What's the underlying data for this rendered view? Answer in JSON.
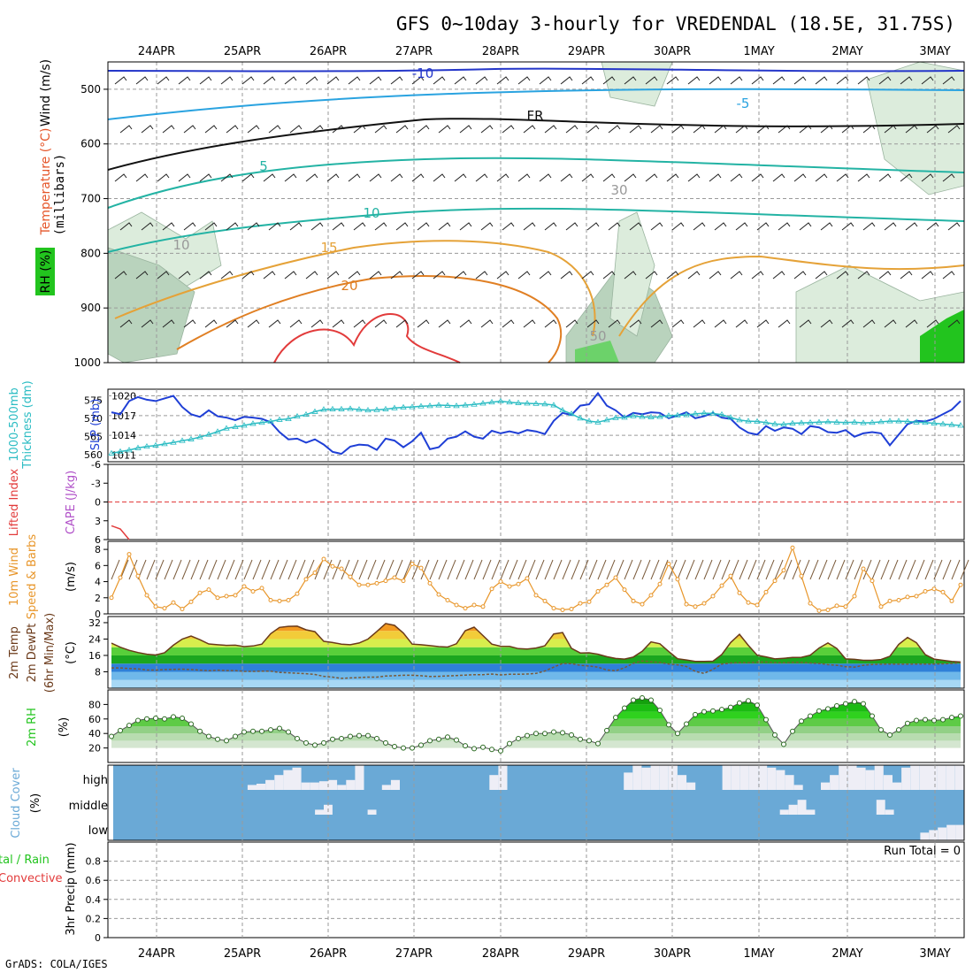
{
  "header": {
    "title": "GFS 0~10day 3-hourly for VREDENDAL (18.5E, 31.75S)",
    "footer": "GrADS: COLA/IGES"
  },
  "dates": [
    "24APR",
    "25APR",
    "26APR",
    "27APR",
    "28APR",
    "29APR",
    "30APR",
    "1MAY",
    "2MAY",
    "3MAY"
  ],
  "colors": {
    "temp_line": "#1f3fd6",
    "thickness": "#2bbcc3",
    "wind_speed": "#e8962a",
    "cloud": "#6aa9d6",
    "rh_green": "#22c41e",
    "lifted": "#e23b3b"
  },
  "chart_data": [
    {
      "panel": "upper_air",
      "type": "heatmap",
      "ylabel_parts": [
        "Wind (m/s)",
        "Temperature (°C)",
        "RH (%)",
        "(millibars)"
      ],
      "y_ticks": [
        "500",
        "600",
        "700",
        "800",
        "900",
        "1000"
      ],
      "ylim": [
        450,
        1000
      ],
      "contour_labels": [
        "-10",
        "-5",
        "FR",
        "5",
        "10",
        "15",
        "20",
        "10",
        "30",
        "50"
      ]
    },
    {
      "panel": "slp_thickness",
      "type": "line",
      "ylabel_left": "Thickness (dm)",
      "ylabel_left2": "1000-500mb",
      "ylabel_right": "SLP (mb)",
      "left_ticks": [
        "575",
        "570",
        "565",
        "560"
      ],
      "right_ticks": [
        "1020",
        "1017",
        "1014",
        "1011"
      ],
      "series": [
        {
          "name": "SLP (mb)",
          "axis": "right",
          "ylim": [
            1010,
            1021
          ],
          "values": [
            1017.5,
            1017.2,
            1019.2,
            1019.8,
            1019.4,
            1019.2,
            1019.6,
            1020,
            1018.3,
            1017.2,
            1016.8,
            1017.8,
            1016.9,
            1016.7,
            1016.3,
            1016.8,
            1016.7,
            1016.5,
            1016,
            1014.5,
            1013.4,
            1013.5,
            1012.9,
            1013.4,
            1012.6,
            1011.5,
            1011.2,
            1012.3,
            1012.6,
            1012.5,
            1011.8,
            1013.5,
            1013.2,
            1012.2,
            1013.1,
            1014.4,
            1011.9,
            1012.2,
            1013.5,
            1013.8,
            1014.6,
            1013.8,
            1013.5,
            1014.7,
            1014.3,
            1014.6,
            1014.3,
            1014.8,
            1014.6,
            1014.2,
            1016.2,
            1017.4,
            1017.1,
            1018.5,
            1018.7,
            1020.4,
            1018.5,
            1017.8,
            1016.7,
            1017.4,
            1017.2,
            1017.5,
            1017.4,
            1016.6,
            1017,
            1017.5,
            1016.6,
            1016.9,
            1017.4,
            1016.7,
            1016.5,
            1015.2,
            1014.4,
            1014.1,
            1015.4,
            1014.7,
            1015.2,
            1015,
            1014.2,
            1015.4,
            1015.2,
            1014.5,
            1014.4,
            1014.8,
            1013.8,
            1014.3,
            1014.5,
            1014.3,
            1012.5,
            1014.1,
            1015.7,
            1016.2,
            1016.1,
            1016.5,
            1017.2,
            1017.9,
            1019.2
          ]
        },
        {
          "name": "1000-500mb Thickness (dm)",
          "axis": "left",
          "ylim": [
            558,
            578
          ],
          "values": [
            560.3,
            560.8,
            561.2,
            561.8,
            562.2,
            562.5,
            562.9,
            563.3,
            563.8,
            564.2,
            564.8,
            565.5,
            566.3,
            567.2,
            567.6,
            568,
            568.5,
            568.8,
            569.1,
            569.6,
            569.8,
            570.5,
            571,
            571.8,
            572.4,
            572.5,
            572.5,
            572.6,
            572.4,
            572.2,
            572.3,
            572.5,
            572.8,
            573,
            573.1,
            573.3,
            573.4,
            573.6,
            573.5,
            573.4,
            573.6,
            573.8,
            574.1,
            574.4,
            574.7,
            574.4,
            574.2,
            574.1,
            574,
            573.9,
            573.6,
            572.2,
            571.2,
            570,
            569.2,
            568.9,
            569.5,
            570.1,
            570.2,
            570.6,
            570.4,
            570.3,
            570.4,
            570.7,
            570.8,
            570.9,
            571.2,
            571.4,
            571.3,
            571,
            570.2,
            569.5,
            569.2,
            569.1,
            568.8,
            568.4,
            568.3,
            568.6,
            568.7,
            568.8,
            568.9,
            569,
            568.9,
            568.8,
            568.9,
            568.7,
            568.8,
            569,
            569.2,
            569.2,
            569.1,
            568.9,
            568.8,
            568.6,
            568.4,
            568.2,
            568
          ]
        }
      ]
    },
    {
      "panel": "lifted_cape",
      "type": "line",
      "ylabel": "Lifted Index",
      "ylabel2": "CAPE (J/kg)",
      "y_ticks": [
        "-6",
        "-3",
        "0",
        "3",
        "6"
      ],
      "ylim": [
        -6,
        6
      ],
      "series": [
        {
          "name": "Lifted Index",
          "values": [
            3.8,
            4.3,
            6
          ]
        }
      ]
    },
    {
      "panel": "wind10m",
      "type": "line",
      "ylabel": "10m Wind",
      "ylabel2": "Speed & Barbs",
      "units": "(m/s)",
      "y_ticks": [
        "0",
        "2",
        "4",
        "6",
        "8"
      ],
      "ylim": [
        0,
        9
      ],
      "series": [
        {
          "name": "10m Wind Speed",
          "values": [
            2,
            4.5,
            7.4,
            4.7,
            2.3,
            0.9,
            0.7,
            1.4,
            0.6,
            1.5,
            2.6,
            3,
            2,
            2.2,
            2.3,
            3.4,
            2.8,
            3.2,
            1.7,
            1.6,
            1.7,
            2.5,
            4.3,
            5.1,
            6.8,
            5.9,
            5.6,
            4.6,
            3.6,
            3.6,
            3.8,
            4.1,
            4.5,
            4.1,
            6.2,
            5.7,
            3.8,
            2.4,
            1.7,
            1.1,
            0.7,
            1.1,
            0.9,
            3.1,
            4,
            3.4,
            3.7,
            4.4,
            2.3,
            1.6,
            0.7,
            0.5,
            0.6,
            1.3,
            1.5,
            2.8,
            3.6,
            4.5,
            3,
            1.6,
            1.2,
            2.3,
            3.7,
            6.2,
            4.3,
            1.2,
            0.9,
            1.3,
            2.2,
            3.5,
            4.7,
            2.6,
            1.4,
            1.1,
            2.7,
            4.1,
            5.4,
            8.2,
            4.7,
            1.3,
            0.4,
            0.5,
            1,
            0.9,
            2.2,
            5.6,
            4.1,
            0.9,
            1.6,
            1.7,
            2.1,
            2.2,
            2.8,
            3.1,
            2.7,
            1.6,
            3.6
          ]
        }
      ]
    },
    {
      "panel": "temp2m",
      "type": "area",
      "ylabel": "2m Temp",
      "ylabel2": "2m DewPt",
      "ylabel3": "(6hr Min/Max)",
      "units": "(°C)",
      "y_ticks": [
        "8",
        "16",
        "24",
        "32"
      ],
      "ylim": [
        0,
        35
      ],
      "series": [
        {
          "name": "2m Temp",
          "values": [
            22,
            20,
            18.5,
            17.4,
            16.6,
            16.2,
            17.3,
            21,
            24,
            25.5,
            23.7,
            21.6,
            21.2,
            20.9,
            21,
            20.3,
            20.6,
            21.5,
            26.6,
            29.7,
            30.2,
            30.3,
            28.5,
            27.6,
            22.9,
            22.3,
            21.5,
            21.2,
            22.1,
            24,
            27.7,
            31.6,
            30.7,
            26.9,
            21.5,
            21.2,
            20.8,
            20.3,
            20.1,
            21.7,
            28.1,
            29.8,
            25.7,
            21.5,
            20.5,
            20.4,
            19.3,
            19.1,
            19.6,
            20.7,
            26.5,
            27.2,
            19.5,
            17.2,
            17.3,
            16.6,
            15.4,
            14.5,
            14.2,
            15.2,
            18,
            22.6,
            21.7,
            17.9,
            14.4,
            13.8,
            13.1,
            13.1,
            13.2,
            16.4,
            22.3,
            26.3,
            20.9,
            16.1,
            15.3,
            14.3,
            14.6,
            15,
            15.1,
            16.1,
            19.6,
            22.1,
            19.4,
            14.3,
            14.1,
            13.6,
            13.6,
            14,
            15.6,
            21.4,
            24.8,
            22.2,
            16.4,
            14.2,
            13.6,
            13.1,
            12.8
          ]
        },
        {
          "name": "2m DewPt",
          "values": [
            9.9,
            9.9,
            9.6,
            9.4,
            8.9,
            8.8,
            9.1,
            9.2,
            9.3,
            9.1,
            8.8,
            8.5,
            8.8,
            8.6,
            8.6,
            8.2,
            8.2,
            8.3,
            8.3,
            7.7,
            7.5,
            7.3,
            7.1,
            6.7,
            5.8,
            5.4,
            4.8,
            5,
            5.2,
            5.4,
            5.4,
            5.9,
            6.1,
            6.3,
            6.3,
            6.1,
            5.7,
            5.8,
            6,
            6.2,
            6.4,
            6.6,
            6.6,
            6.9,
            6.5,
            6.8,
            6.8,
            6.9,
            7.2,
            8.4,
            10.3,
            12.1,
            12,
            11.2,
            10.8,
            10.3,
            8.9,
            8.5,
            10,
            12.2,
            13.3,
            12.9,
            12.6,
            11.8,
            11.4,
            10.6,
            8.2,
            7.2,
            9.2,
            11.8,
            12.3,
            12.5,
            12.5,
            12.7,
            12.8,
            12.5,
            12.4,
            12.6,
            12.6,
            12.3,
            12.1,
            11.5,
            11.2,
            10.5,
            10.3,
            11.2,
            11.6,
            11.7,
            11.8,
            11.7,
            11.7,
            11.8,
            11.8,
            11.8,
            11.9,
            12.1,
            12.4
          ]
        }
      ]
    },
    {
      "panel": "rh2m",
      "type": "area",
      "ylabel": "2m RH",
      "units": "(%)",
      "y_ticks": [
        "20",
        "40",
        "60",
        "80"
      ],
      "ylim": [
        0,
        100
      ],
      "series": [
        {
          "name": "2m RH",
          "values": [
            36,
            44,
            51,
            58,
            60,
            61,
            60,
            63,
            61,
            53,
            43,
            36,
            32,
            30,
            36,
            42,
            43,
            43,
            45,
            47,
            42,
            33,
            27,
            24,
            27,
            32,
            33,
            36,
            37,
            37,
            33,
            27,
            22,
            20,
            20,
            24,
            30,
            32,
            35,
            31,
            23,
            19,
            21,
            18,
            16,
            26,
            33,
            37,
            40,
            40,
            42,
            41,
            38,
            32,
            30,
            26,
            44,
            62,
            75,
            86,
            89,
            86,
            72,
            52,
            40,
            53,
            66,
            70,
            71,
            73,
            76,
            82,
            85,
            79,
            59,
            38,
            25,
            43,
            57,
            64,
            71,
            74,
            78,
            81,
            84,
            81,
            64,
            45,
            38,
            45,
            54,
            58,
            59,
            58,
            59,
            62,
            64
          ]
        }
      ]
    },
    {
      "panel": "cloud_cover",
      "type": "area",
      "ylabel": "Cloud Cover",
      "units": "(%)",
      "y_ticks": [
        "high",
        "middle",
        "low"
      ],
      "series": [
        {
          "name": "high",
          "values": [
            0,
            0,
            0,
            0,
            0,
            0,
            0,
            0,
            0,
            0,
            0,
            0,
            0,
            0,
            0,
            20,
            25,
            40,
            60,
            80,
            90,
            30,
            30,
            35,
            40,
            20,
            40,
            100,
            0,
            0,
            20,
            40,
            0,
            0,
            0,
            0,
            0,
            0,
            0,
            0,
            0,
            0,
            60,
            100,
            0,
            0,
            0,
            0,
            0,
            0,
            0,
            0,
            0,
            0,
            0,
            0,
            0,
            70,
            100,
            90,
            100,
            100,
            100,
            60,
            30,
            0,
            0,
            0,
            100,
            100,
            100,
            100,
            100,
            90,
            80,
            60,
            20,
            0,
            0,
            30,
            60,
            100,
            100,
            90,
            80,
            100,
            60,
            30,
            90,
            100,
            100,
            100,
            100,
            100,
            100
          ]
        },
        {
          "name": "middle",
          "values": [
            0,
            0,
            0,
            0,
            0,
            0,
            0,
            0,
            0,
            0,
            0,
            0,
            0,
            0,
            0,
            0,
            0,
            0,
            0,
            0,
            0,
            0,
            0,
            20,
            40,
            0,
            0,
            0,
            0,
            20,
            0,
            0,
            0,
            0,
            0,
            0,
            0,
            0,
            0,
            0,
            0,
            0,
            0,
            0,
            0,
            0,
            0,
            0,
            0,
            0,
            0,
            0,
            0,
            0,
            0,
            0,
            0,
            0,
            0,
            0,
            0,
            0,
            0,
            0,
            0,
            0,
            0,
            0,
            0,
            0,
            0,
            0,
            0,
            0,
            0,
            0,
            20,
            40,
            60,
            20,
            0,
            0,
            0,
            0,
            0,
            0,
            0,
            60,
            20,
            0,
            0,
            0,
            0,
            0,
            0,
            0,
            0
          ]
        },
        {
          "name": "low",
          "values": [
            0,
            0,
            0,
            0,
            0,
            0,
            0,
            0,
            0,
            0,
            0,
            0,
            0,
            0,
            0,
            0,
            0,
            0,
            0,
            0,
            0,
            0,
            0,
            0,
            0,
            0,
            0,
            0,
            0,
            0,
            0,
            0,
            0,
            0,
            0,
            0,
            0,
            0,
            0,
            0,
            0,
            0,
            0,
            0,
            0,
            0,
            0,
            0,
            0,
            0,
            0,
            0,
            0,
            0,
            0,
            0,
            0,
            0,
            0,
            0,
            0,
            0,
            0,
            0,
            0,
            0,
            0,
            0,
            0,
            0,
            0,
            0,
            0,
            0,
            0,
            0,
            0,
            0,
            0,
            0,
            0,
            0,
            0,
            0,
            0,
            0,
            0,
            0,
            0,
            0,
            0,
            0,
            30,
            40,
            50,
            60,
            60
          ]
        }
      ]
    },
    {
      "panel": "precip",
      "type": "bar",
      "ylabel": "3hr Precip (mm)",
      "ylabel_left1": "tal / Rain",
      "ylabel_left2": "Convective",
      "y_ticks": [
        "0",
        "0.2",
        "0.4",
        "0.6",
        "0.8"
      ],
      "ylim": [
        0,
        1
      ],
      "run_total": "Run Total = 0",
      "series": [
        {
          "name": "3hr Precip",
          "values": []
        }
      ]
    }
  ]
}
